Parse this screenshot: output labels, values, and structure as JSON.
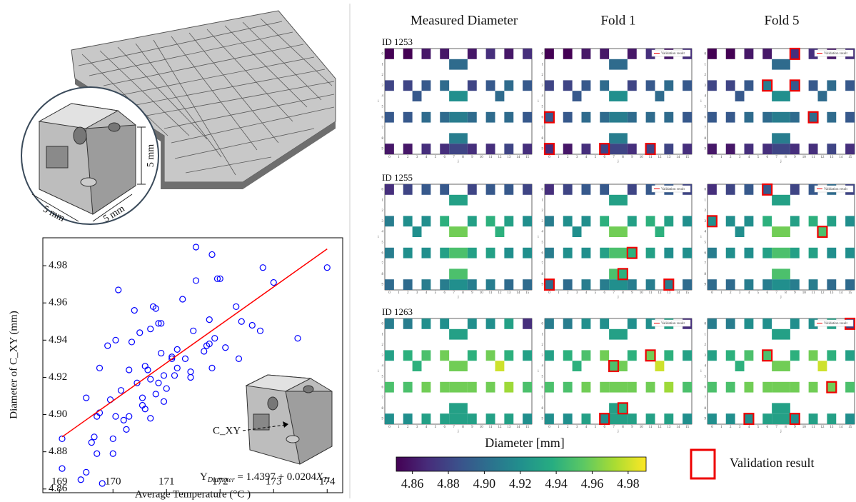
{
  "renders": {
    "dim_labels": [
      "5 mm",
      "5 mm",
      "5 mm"
    ]
  },
  "chart_data": [
    {
      "type": "scatter",
      "x_label": "Average Temperature (°C )",
      "y_label": "Diameter of C_XY (mm)",
      "annotation": "C_XY",
      "equation": [
        "Y",
        "Diameter",
        " = 1.4397 + 0.0204",
        "X",
        "T1"
      ],
      "xlim": [
        168.69,
        174.29
      ],
      "ylim": [
        4.858,
        4.995
      ],
      "xticks": [
        169,
        170,
        171,
        172,
        173,
        174
      ],
      "yticks": [
        4.86,
        4.88,
        {
          "value": 4.9,
          "label": "4.90"
        },
        4.92,
        4.94,
        4.96,
        4.98
      ],
      "points": {
        "color": "#0000ff",
        "x": [
          169.05,
          169.05,
          169.4,
          169.5,
          169.5,
          169.6,
          169.65,
          169.7,
          169.7,
          169.75,
          169.8,
          169.75,
          169.9,
          169.95,
          170.0,
          170.0,
          170.05,
          170.05,
          170.1,
          170.15,
          170.2,
          170.25,
          170.3,
          170.3,
          170.35,
          170.4,
          170.45,
          170.5,
          170.55,
          170.55,
          170.6,
          170.6,
          170.65,
          170.7,
          170.7,
          170.7,
          170.75,
          170.8,
          170.8,
          170.85,
          170.85,
          170.9,
          170.9,
          170.95,
          170.95,
          171.0,
          171.1,
          171.1,
          171.15,
          171.2,
          171.2,
          171.3,
          171.35,
          171.45,
          171.45,
          171.5,
          171.55,
          171.55,
          171.7,
          171.75,
          171.8,
          171.8,
          171.85,
          171.85,
          171.9,
          171.95,
          172.0,
          172.1,
          172.3,
          172.35,
          172.4,
          172.6,
          172.75,
          172.8,
          173.0,
          173.45,
          174.0
        ],
        "y": [
          4.871,
          4.887,
          4.865,
          4.869,
          4.909,
          4.885,
          4.888,
          4.879,
          4.899,
          4.901,
          4.863,
          4.925,
          4.937,
          4.908,
          4.879,
          4.887,
          4.899,
          4.94,
          4.967,
          4.913,
          4.897,
          4.892,
          4.899,
          4.924,
          4.939,
          4.956,
          4.917,
          4.944,
          4.905,
          4.909,
          4.903,
          4.926,
          4.924,
          4.898,
          4.946,
          4.919,
          4.958,
          4.957,
          4.911,
          4.917,
          4.949,
          4.933,
          4.949,
          4.907,
          4.921,
          4.914,
          4.93,
          4.931,
          4.921,
          4.935,
          4.925,
          4.962,
          4.93,
          4.92,
          4.923,
          4.945,
          4.99,
          4.972,
          4.934,
          4.937,
          4.951,
          4.938,
          4.925,
          4.986,
          4.941,
          4.973,
          4.973,
          4.936,
          4.958,
          4.93,
          4.95,
          4.948,
          4.945,
          4.979,
          4.971,
          4.941,
          4.979
        ]
      },
      "fit": {
        "color": "#ff0000",
        "x": [
          169.05,
          174.0
        ],
        "y": [
          4.888,
          4.989
        ]
      }
    },
    {
      "type": "heatmap",
      "column_titles": [
        "Measured Diameter",
        "Fold 1",
        "Fold 5"
      ],
      "x_label": "j",
      "y_label": "i",
      "xticks": [
        0,
        1,
        2,
        3,
        4,
        5,
        6,
        7,
        8,
        9,
        10,
        11,
        12,
        13,
        14,
        15
      ],
      "yticks": [
        0,
        1,
        2,
        3,
        4,
        5,
        6,
        7,
        8,
        9
      ],
      "legend_label": "Validation result",
      "cells": [
        [
          0,
          0
        ],
        [
          0,
          2
        ],
        [
          0,
          4
        ],
        [
          0,
          6
        ],
        [
          0,
          9
        ],
        [
          0,
          11
        ],
        [
          0,
          13
        ],
        [
          0,
          15
        ],
        [
          1,
          7
        ],
        [
          1,
          8
        ],
        [
          3,
          0
        ],
        [
          3,
          2
        ],
        [
          3,
          4
        ],
        [
          3,
          6
        ],
        [
          3,
          9
        ],
        [
          3,
          11
        ],
        [
          3,
          13
        ],
        [
          3,
          15
        ],
        [
          4,
          3
        ],
        [
          4,
          7
        ],
        [
          4,
          8
        ],
        [
          4,
          12
        ],
        [
          6,
          0
        ],
        [
          6,
          2
        ],
        [
          6,
          4
        ],
        [
          6,
          6
        ],
        [
          6,
          7
        ],
        [
          6,
          8
        ],
        [
          6,
          9
        ],
        [
          6,
          11
        ],
        [
          6,
          13
        ],
        [
          6,
          15
        ],
        [
          8,
          7
        ],
        [
          8,
          8
        ],
        [
          9,
          0
        ],
        [
          9,
          2
        ],
        [
          9,
          4
        ],
        [
          9,
          6
        ],
        [
          9,
          7
        ],
        [
          9,
          8
        ],
        [
          9,
          9
        ],
        [
          9,
          11
        ],
        [
          9,
          13
        ],
        [
          9,
          15
        ]
      ],
      "panels": [
        {
          "id": "ID 1253",
          "measured": [
            4.85,
            4.85,
            4.86,
            4.86,
            4.86,
            4.87,
            4.86,
            4.87,
            4.9,
            4.9,
            4.88,
            4.88,
            4.89,
            4.9,
            4.88,
            4.89,
            4.9,
            4.89,
            4.89,
            4.92,
            4.92,
            4.9,
            4.89,
            4.89,
            4.9,
            4.9,
            4.91,
            4.91,
            4.9,
            4.9,
            4.9,
            4.89,
            4.91,
            4.91,
            4.86,
            4.86,
            4.87,
            4.87,
            4.88,
            4.88,
            4.87,
            4.87,
            4.88,
            4.87
          ],
          "fold1": [
            4.85,
            4.85,
            4.86,
            4.86,
            4.86,
            4.87,
            4.86,
            4.87,
            4.9,
            4.9,
            4.88,
            4.88,
            4.89,
            4.9,
            4.88,
            4.89,
            4.9,
            4.89,
            4.89,
            4.92,
            4.92,
            4.9,
            4.89,
            4.89,
            4.9,
            4.9,
            4.91,
            4.91,
            4.9,
            4.9,
            4.9,
            4.89,
            4.91,
            4.91,
            4.87,
            4.86,
            4.87,
            4.88,
            4.88,
            4.88,
            4.87,
            4.88,
            4.88,
            4.87
          ],
          "fold5": [
            4.85,
            4.85,
            4.86,
            4.86,
            4.87,
            4.87,
            4.86,
            4.87,
            4.9,
            4.9,
            4.88,
            4.88,
            4.89,
            4.91,
            4.89,
            4.89,
            4.9,
            4.89,
            4.89,
            4.92,
            4.92,
            4.9,
            4.89,
            4.89,
            4.9,
            4.9,
            4.91,
            4.91,
            4.9,
            4.9,
            4.9,
            4.89,
            4.91,
            4.91,
            4.86,
            4.86,
            4.87,
            4.87,
            4.88,
            4.88,
            4.87,
            4.87,
            4.88,
            4.87
          ],
          "fold1_validation": [
            [
              6,
              0
            ],
            [
              9,
              0
            ],
            [
              9,
              6
            ],
            [
              9,
              11
            ]
          ],
          "fold5_validation": [
            [
              0,
              9
            ],
            [
              3,
              6
            ],
            [
              3,
              9
            ],
            [
              6,
              11
            ]
          ]
        },
        {
          "id": "ID 1255",
          "measured": [
            4.87,
            4.88,
            4.89,
            4.89,
            4.88,
            4.89,
            4.89,
            4.88,
            4.93,
            4.93,
            4.91,
            4.92,
            4.92,
            4.94,
            4.93,
            4.94,
            4.93,
            4.92,
            4.92,
            4.96,
            4.96,
            4.94,
            4.91,
            4.92,
            4.92,
            4.93,
            4.95,
            4.95,
            4.93,
            4.93,
            4.92,
            4.92,
            4.95,
            4.95,
            4.9,
            4.9,
            4.91,
            4.91,
            4.92,
            4.92,
            4.91,
            4.91,
            4.9,
            4.9
          ],
          "fold1": [
            4.87,
            4.88,
            4.89,
            4.89,
            4.88,
            4.89,
            4.89,
            4.88,
            4.93,
            4.93,
            4.91,
            4.92,
            4.92,
            4.94,
            4.93,
            4.94,
            4.93,
            4.92,
            4.92,
            4.96,
            4.96,
            4.94,
            4.91,
            4.92,
            4.92,
            4.93,
            4.95,
            4.95,
            4.94,
            4.93,
            4.92,
            4.92,
            4.95,
            4.94,
            4.9,
            4.9,
            4.91,
            4.91,
            4.92,
            4.92,
            4.91,
            4.91,
            4.91,
            4.9
          ],
          "fold5": [
            4.87,
            4.88,
            4.89,
            4.89,
            4.88,
            4.89,
            4.9,
            4.88,
            4.93,
            4.93,
            4.92,
            4.92,
            4.92,
            4.94,
            4.93,
            4.94,
            4.93,
            4.92,
            4.92,
            4.96,
            4.96,
            4.95,
            4.91,
            4.92,
            4.92,
            4.93,
            4.95,
            4.95,
            4.93,
            4.93,
            4.92,
            4.92,
            4.95,
            4.95,
            4.9,
            4.9,
            4.91,
            4.91,
            4.92,
            4.92,
            4.91,
            4.91,
            4.9,
            4.9
          ],
          "fold1_validation": [
            [
              6,
              9
            ],
            [
              8,
              8
            ],
            [
              9,
              0
            ],
            [
              9,
              13
            ]
          ],
          "fold5_validation": [
            [
              0,
              6
            ],
            [
              3,
              0
            ],
            [
              4,
              12
            ]
          ]
        },
        {
          "id": "ID 1263",
          "measured": [
            4.91,
            4.91,
            4.92,
            4.92,
            4.92,
            4.92,
            4.93,
            4.87,
            4.93,
            4.93,
            4.93,
            4.94,
            4.95,
            4.96,
            4.94,
            4.96,
            4.94,
            4.93,
            4.94,
            4.96,
            4.96,
            4.98,
            4.95,
            4.95,
            4.96,
            4.96,
            4.96,
            4.96,
            4.96,
            4.96,
            4.97,
            4.95,
            4.93,
            4.93,
            4.92,
            4.92,
            4.93,
            4.93,
            4.93,
            4.93,
            4.93,
            4.93,
            4.93,
            4.92
          ],
          "fold1": [
            4.91,
            4.91,
            4.92,
            4.92,
            4.92,
            4.92,
            4.93,
            4.87,
            4.93,
            4.93,
            4.93,
            4.94,
            4.95,
            4.96,
            4.94,
            4.96,
            4.94,
            4.93,
            4.94,
            4.95,
            4.96,
            4.98,
            4.95,
            4.95,
            4.96,
            4.96,
            4.96,
            4.96,
            4.96,
            4.96,
            4.97,
            4.95,
            4.93,
            4.94,
            4.92,
            4.92,
            4.93,
            4.92,
            4.93,
            4.93,
            4.93,
            4.93,
            4.93,
            4.92
          ],
          "fold5": [
            4.91,
            4.91,
            4.92,
            4.92,
            4.92,
            4.92,
            4.93,
            4.88,
            4.93,
            4.93,
            4.93,
            4.94,
            4.95,
            4.95,
            4.94,
            4.96,
            4.94,
            4.93,
            4.94,
            4.96,
            4.96,
            4.98,
            4.95,
            4.95,
            4.96,
            4.96,
            4.96,
            4.96,
            4.96,
            4.96,
            4.96,
            4.95,
            4.93,
            4.93,
            4.92,
            4.92,
            4.92,
            4.93,
            4.93,
            4.93,
            4.92,
            4.93,
            4.93,
            4.92
          ],
          "fold1_validation": [
            [
              3,
              11
            ],
            [
              4,
              7
            ],
            [
              8,
              8
            ],
            [
              9,
              6
            ]
          ],
          "fold5_validation": [
            [
              0,
              15
            ],
            [
              3,
              6
            ],
            [
              6,
              13
            ],
            [
              9,
              4
            ],
            [
              9,
              9
            ]
          ]
        }
      ],
      "colorbar": {
        "label": "Diameter [mm]",
        "cmap": "viridis",
        "lim": [
          4.851,
          4.99
        ],
        "ticks": [
          4.86,
          4.88,
          {
            "value": 4.9,
            "label": "4.90"
          },
          4.92,
          4.94,
          4.96,
          4.98
        ]
      },
      "validation_color": "#ee0000"
    }
  ]
}
